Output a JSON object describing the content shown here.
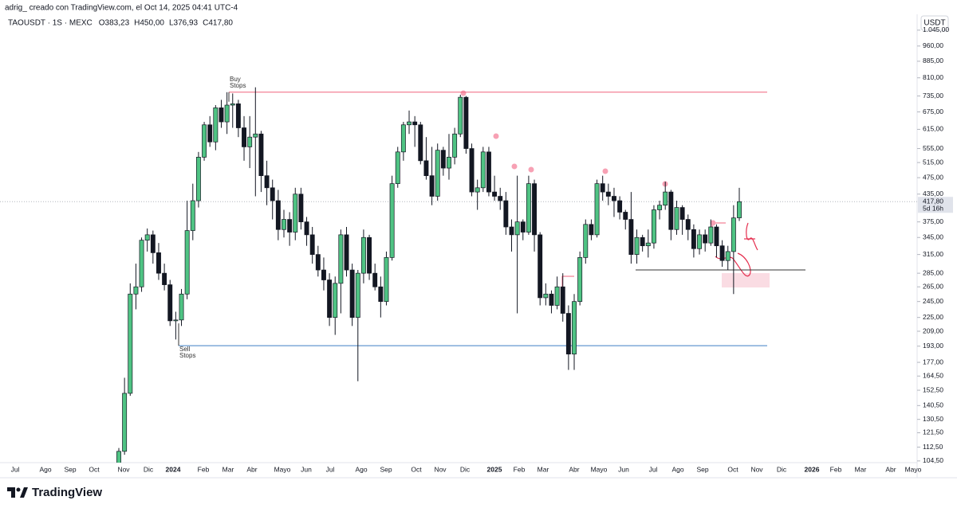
{
  "header": {
    "attribution": "adrig_ creado con TradingView.com, el Oct 14, 2025 04:41 UTC-4"
  },
  "chart_data": {
    "type": "candlestick",
    "symbol": "TAOUSDT · 1S · MEXC",
    "ohlc_legend": [
      {
        "key": "O",
        "value": 383.23,
        "label": "383,23"
      },
      {
        "key": "H",
        "value": 450,
        "label": "450,00"
      },
      {
        "key": "L",
        "value": 376.93,
        "label": "376,93"
      },
      {
        "key": "C",
        "value": 417.8,
        "label": "417,80"
      }
    ],
    "currency": "USDT",
    "log_scale": true,
    "ylim": [
      104,
      1118
    ],
    "yticks": [
      {
        "value": 1045,
        "label": "1.045,00"
      },
      {
        "value": 960,
        "label": "960,00"
      },
      {
        "value": 885,
        "label": "885,00"
      },
      {
        "value": 810,
        "label": "810,00"
      },
      {
        "value": 735,
        "label": "735,00"
      },
      {
        "value": 675,
        "label": "675,00"
      },
      {
        "value": 615,
        "label": "615,00"
      },
      {
        "value": 555,
        "label": "555,00"
      },
      {
        "value": 515,
        "label": "515,00"
      },
      {
        "value": 475,
        "label": "475,00"
      },
      {
        "value": 435,
        "label": "435,00"
      },
      {
        "value": 375,
        "label": "375,00"
      },
      {
        "value": 345,
        "label": "345,00"
      },
      {
        "value": 315,
        "label": "315,00"
      },
      {
        "value": 285,
        "label": "285,00"
      },
      {
        "value": 265,
        "label": "265,00"
      },
      {
        "value": 245,
        "label": "245,00"
      },
      {
        "value": 225,
        "label": "225,00"
      },
      {
        "value": 209,
        "label": "209,00"
      },
      {
        "value": 193,
        "label": "193,00"
      },
      {
        "value": 177,
        "label": "177,00"
      },
      {
        "value": 164.5,
        "label": "164,50"
      },
      {
        "value": 152.5,
        "label": "152,50"
      },
      {
        "value": 140.5,
        "label": "140,50"
      },
      {
        "value": 130.5,
        "label": "130,50"
      },
      {
        "value": 121.5,
        "label": "121,50"
      },
      {
        "value": 112.5,
        "label": "112,50"
      },
      {
        "value": 104.5,
        "label": "104,50"
      }
    ],
    "x_axis_labels": [
      "Jul",
      "Ago",
      "Sep",
      "Oct",
      "Nov",
      "Dic",
      "2024",
      "Feb",
      "Mar",
      "Abr",
      "Mayo",
      "Jun",
      "Jul",
      "Ago",
      "Sep",
      "Oct",
      "Nov",
      "Dic",
      "2025",
      "Feb",
      "Mar",
      "Abr",
      "Mayo",
      "Jun",
      "Jul",
      "Ago",
      "Sep",
      "Oct",
      "Nov",
      "Dic",
      "2026",
      "Feb",
      "Mar",
      "Abr",
      "Mayo"
    ],
    "up_color": "#4fc383",
    "down_color": "#131722",
    "open": [
      99,
      110,
      150,
      255,
      265,
      340,
      350,
      318,
      285,
      268,
      221,
      222,
      255,
      358,
      420,
      530,
      630,
      575,
      690,
      640,
      700,
      705,
      620,
      560,
      590,
      600,
      480,
      450,
      420,
      360,
      380,
      355,
      435,
      375,
      350,
      315,
      290,
      275,
      225,
      270,
      350,
      290,
      225,
      285,
      345,
      285,
      265,
      245,
      310,
      460,
      545,
      630,
      640,
      630,
      520,
      480,
      430,
      550,
      500,
      530,
      600,
      730,
      555,
      440,
      450,
      545,
      440,
      430,
      420,
      365,
      350,
      375,
      355,
      460,
      350,
      250,
      255,
      240,
      265,
      230,
      185,
      245,
      310,
      370,
      350,
      460,
      440,
      430,
      420,
      395,
      380,
      315,
      345,
      330,
      335,
      400,
      410,
      440,
      360,
      405,
      380,
      360,
      325,
      350,
      335,
      365,
      330,
      305,
      320,
      383.23
    ],
    "high": [
      112,
      163,
      270,
      300,
      345,
      362,
      358,
      335,
      300,
      275,
      232,
      262,
      420,
      460,
      545,
      640,
      660,
      700,
      720,
      750,
      745,
      720,
      660,
      660,
      770,
      610,
      520,
      470,
      445,
      400,
      395,
      450,
      450,
      385,
      365,
      330,
      310,
      285,
      280,
      360,
      365,
      300,
      290,
      360,
      350,
      300,
      280,
      320,
      480,
      560,
      640,
      680,
      660,
      640,
      590,
      560,
      570,
      560,
      600,
      620,
      740,
      735,
      570,
      470,
      560,
      560,
      480,
      450,
      440,
      380,
      480,
      380,
      480,
      470,
      355,
      270,
      260,
      280,
      285,
      240,
      255,
      320,
      380,
      380,
      470,
      480,
      460,
      450,
      430,
      400,
      440,
      360,
      350,
      360,
      410,
      420,
      465,
      445,
      420,
      410,
      390,
      370,
      360,
      360,
      380,
      370,
      340,
      330,
      410,
      450
    ],
    "low": [
      96,
      108,
      148,
      235,
      258,
      320,
      300,
      275,
      260,
      215,
      200,
      215,
      248,
      340,
      405,
      520,
      560,
      550,
      620,
      600,
      620,
      590,
      520,
      500,
      430,
      440,
      410,
      380,
      340,
      345,
      330,
      340,
      360,
      330,
      300,
      280,
      260,
      215,
      205,
      230,
      280,
      215,
      160,
      270,
      275,
      260,
      225,
      240,
      305,
      450,
      520,
      600,
      560,
      510,
      470,
      410,
      420,
      480,
      470,
      510,
      590,
      540,
      430,
      400,
      440,
      430,
      420,
      400,
      350,
      320,
      230,
      340,
      350,
      320,
      240,
      240,
      230,
      235,
      220,
      170,
      170,
      240,
      300,
      340,
      345,
      420,
      410,
      385,
      380,
      360,
      300,
      300,
      320,
      310,
      325,
      380,
      400,
      340,
      350,
      350,
      340,
      310,
      315,
      320,
      330,
      310,
      295,
      290,
      255,
      376.93
    ],
    "close": [
      110,
      150,
      255,
      265,
      340,
      350,
      318,
      285,
      268,
      221,
      222,
      255,
      358,
      420,
      530,
      630,
      575,
      690,
      640,
      700,
      705,
      620,
      560,
      590,
      600,
      480,
      450,
      420,
      360,
      380,
      355,
      435,
      375,
      350,
      315,
      290,
      275,
      225,
      270,
      350,
      290,
      225,
      285,
      345,
      285,
      265,
      245,
      310,
      460,
      545,
      630,
      640,
      630,
      520,
      480,
      430,
      550,
      500,
      530,
      600,
      730,
      555,
      440,
      450,
      545,
      440,
      430,
      420,
      365,
      350,
      375,
      355,
      460,
      350,
      250,
      255,
      240,
      265,
      230,
      185,
      245,
      310,
      370,
      350,
      460,
      440,
      430,
      420,
      395,
      380,
      315,
      345,
      330,
      335,
      400,
      410,
      440,
      360,
      405,
      380,
      360,
      325,
      350,
      335,
      365,
      330,
      305,
      320,
      383,
      417.8
    ],
    "last_price": {
      "value": 417.8,
      "label": "417,80"
    },
    "countdown": "5d 16h",
    "levels": [
      {
        "value": 750,
        "color": "#f0637c",
        "label_lines": [
          "Buy",
          "Stops"
        ]
      },
      {
        "value": 193.5,
        "color": "#3d7fc4",
        "label_lines": [
          "Sell",
          "Stops"
        ]
      },
      {
        "value": 290,
        "color": "#333333"
      }
    ]
  },
  "footer": {
    "brand": "TradingView"
  }
}
